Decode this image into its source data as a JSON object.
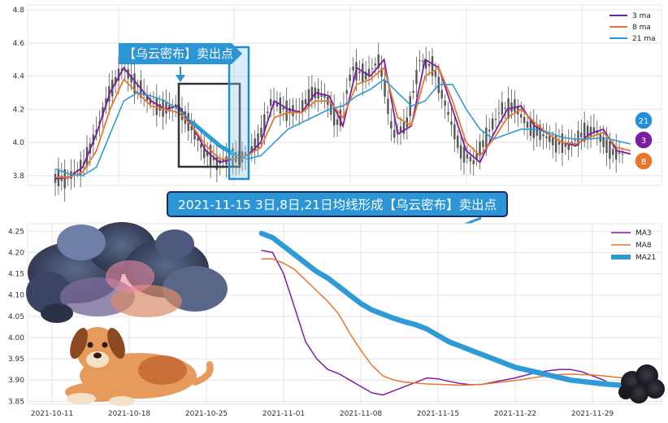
{
  "top_chart": {
    "legend": [
      "3 ma",
      "8 ma",
      "21 ma"
    ],
    "callout_text": "【乌云密布】卖出点",
    "badges": [
      "21",
      "3",
      "8"
    ],
    "y_ticks": [
      "3.8",
      "4.0",
      "4.2",
      "4.4",
      "4.6",
      "4.8"
    ]
  },
  "caption": "2021-11-15 3日,8日,21日均线形成【乌云密布】卖出点",
  "colors": {
    "ma3": "#7b1fa2",
    "ma8": "#e8772e",
    "ma21": "#2e9bd6",
    "candle": "#555555",
    "box": "#333333"
  },
  "chart_data": [
    {
      "type": "line",
      "title": "",
      "series": [
        {
          "name": "3 ma",
          "values": [
            3.78,
            3.79,
            3.85,
            4.05,
            4.3,
            4.45,
            4.35,
            4.25,
            4.2,
            4.22,
            4.1,
            3.95,
            3.88,
            3.9,
            3.92,
            4.0,
            4.25,
            4.2,
            4.18,
            4.3,
            4.28,
            4.1,
            4.45,
            4.4,
            4.5,
            4.05,
            4.1,
            4.5,
            4.45,
            4.2,
            3.95,
            3.88,
            4.05,
            4.2,
            4.22,
            4.1,
            4.05,
            4.0,
            3.98,
            4.05,
            4.08,
            3.95,
            3.93
          ]
        },
        {
          "name": "8 ma",
          "values": [
            3.79,
            3.79,
            3.82,
            3.95,
            4.2,
            4.38,
            4.3,
            4.22,
            4.2,
            4.18,
            4.1,
            3.98,
            3.9,
            3.9,
            3.92,
            3.97,
            4.15,
            4.18,
            4.18,
            4.25,
            4.25,
            4.15,
            4.35,
            4.38,
            4.45,
            4.15,
            4.1,
            4.4,
            4.45,
            4.25,
            4.0,
            3.92,
            4.02,
            4.15,
            4.2,
            4.12,
            4.05,
            4.0,
            3.99,
            4.03,
            4.06,
            3.97,
            3.95
          ]
        },
        {
          "name": "21 ma",
          "values": [
            3.84,
            3.81,
            3.8,
            3.85,
            4.05,
            4.25,
            4.3,
            4.28,
            4.25,
            4.2,
            4.12,
            4.05,
            3.98,
            3.93,
            3.9,
            3.92,
            4.0,
            4.08,
            4.12,
            4.16,
            4.2,
            4.22,
            4.28,
            4.32,
            4.38,
            4.3,
            4.22,
            4.25,
            4.35,
            4.35,
            4.2,
            4.08,
            4.02,
            4.05,
            4.08,
            4.08,
            4.06,
            4.03,
            4.02,
            4.02,
            4.03,
            4.01,
            3.99
          ]
        }
      ],
      "ylim": [
        3.75,
        4.82
      ],
      "grid": true,
      "legend_position": "top-right"
    },
    {
      "type": "line",
      "title": "",
      "x": [
        "2021-10-30",
        "2021-10-31",
        "2021-11-01",
        "2021-11-02",
        "2021-11-03",
        "2021-11-04",
        "2021-11-05",
        "2021-11-06",
        "2021-11-07",
        "2021-11-08",
        "2021-11-09",
        "2021-11-10",
        "2021-11-11",
        "2021-11-12",
        "2021-11-13",
        "2021-11-14",
        "2021-11-15",
        "2021-11-16",
        "2021-11-17",
        "2021-11-18",
        "2021-11-19",
        "2021-11-20",
        "2021-11-21",
        "2021-11-22",
        "2021-11-23",
        "2021-11-24",
        "2021-11-25",
        "2021-11-26",
        "2021-11-27",
        "2021-11-28",
        "2021-11-29",
        "2021-11-30",
        "2021-12-01",
        "2021-12-02"
      ],
      "x_ticks": [
        "2021-10-11",
        "2021-10-18",
        "2021-10-25",
        "2021-11-01",
        "2021-11-08",
        "2021-11-15",
        "2021-11-22",
        "2021-11-29"
      ],
      "series": [
        {
          "name": "MA3",
          "values": [
            4.205,
            4.2,
            4.15,
            4.07,
            3.99,
            3.95,
            3.925,
            3.915,
            3.9,
            3.885,
            3.87,
            3.865,
            3.875,
            3.885,
            3.895,
            3.905,
            3.903,
            3.897,
            3.892,
            3.889,
            3.89,
            3.895,
            3.9,
            3.905,
            3.912,
            3.918,
            3.922,
            3.925,
            3.925,
            3.92,
            3.91,
            3.9,
            3.885,
            3.885
          ]
        },
        {
          "name": "MA8",
          "values": [
            4.185,
            4.185,
            4.175,
            4.16,
            4.135,
            4.11,
            4.085,
            4.055,
            4.01,
            3.97,
            3.935,
            3.91,
            3.9,
            3.895,
            3.893,
            3.891,
            3.89,
            3.889,
            3.888,
            3.889,
            3.89,
            3.893,
            3.896,
            3.899,
            3.903,
            3.907,
            3.91,
            3.913,
            3.914,
            3.913,
            3.912,
            3.91,
            3.907,
            3.905
          ]
        },
        {
          "name": "MA21",
          "values": [
            4.245,
            4.235,
            4.215,
            4.195,
            4.175,
            4.155,
            4.14,
            4.12,
            4.1,
            4.08,
            4.065,
            4.055,
            4.045,
            4.037,
            4.03,
            4.02,
            4.005,
            3.99,
            3.98,
            3.97,
            3.96,
            3.95,
            3.94,
            3.93,
            3.924,
            3.918,
            3.912,
            3.906,
            3.9,
            3.897,
            3.894,
            3.891,
            3.889,
            3.887
          ]
        }
      ],
      "y_ticks": [
        "3.85",
        "3.90",
        "3.95",
        "4.00",
        "4.05",
        "4.10",
        "4.15",
        "4.20",
        "4.25"
      ],
      "ylim": [
        3.845,
        4.262
      ],
      "grid": true,
      "legend_position": "top-right"
    }
  ]
}
